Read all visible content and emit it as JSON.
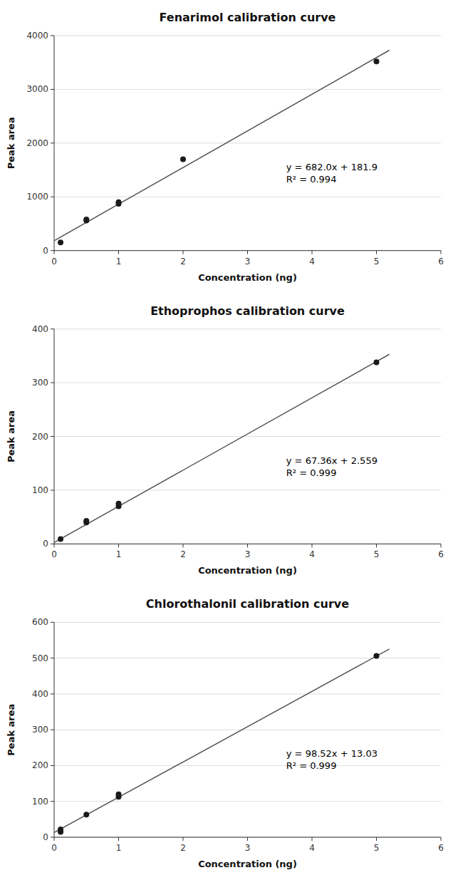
{
  "chart_data": [
    {
      "type": "scatter",
      "title": "Fenarimol calibration curve",
      "xlabel": "Concentration (ng)",
      "ylabel": "Peak area",
      "xlim": [
        0,
        6
      ],
      "xticks": [
        0,
        1,
        2,
        3,
        4,
        5,
        6
      ],
      "ylim": [
        0,
        4000
      ],
      "yticks": [
        0,
        1000,
        2000,
        3000,
        4000
      ],
      "grid": true,
      "series": [
        {
          "type": "scatter",
          "color": "#1a1a1a",
          "x": [
            0.1,
            0.5,
            0.5,
            1.0,
            1.0,
            2.0,
            5.0
          ],
          "values": [
            150,
            560,
            580,
            870,
            900,
            1700,
            3520
          ]
        },
        {
          "type": "line",
          "color": "#555555",
          "x": [
            0,
            5.2
          ],
          "values": [
            181.9,
            3728.3
          ]
        }
      ],
      "annotations": [
        "y = 682.0x + 181.9",
        "R² = 0.994"
      ]
    },
    {
      "type": "scatter",
      "title": "Ethoprophos calibration curve",
      "xlabel": "Concentration (ng)",
      "ylabel": "Peak area",
      "xlim": [
        0,
        6
      ],
      "xticks": [
        0,
        1,
        2,
        3,
        4,
        5,
        6
      ],
      "ylim": [
        0,
        400
      ],
      "yticks": [
        0,
        100,
        200,
        300,
        400
      ],
      "grid": true,
      "series": [
        {
          "type": "scatter",
          "color": "#1a1a1a",
          "x": [
            0.1,
            0.5,
            0.5,
            1.0,
            1.0,
            5.0
          ],
          "values": [
            9,
            40,
            43,
            70,
            75,
            338
          ]
        },
        {
          "type": "line",
          "color": "#555555",
          "x": [
            0,
            5.2
          ],
          "values": [
            2.559,
            352.831
          ]
        }
      ],
      "annotations": [
        "y = 67.36x + 2.559",
        "R² = 0.999"
      ]
    },
    {
      "type": "scatter",
      "title": "Chlorothalonil calibration curve",
      "xlabel": "Concentration (ng)",
      "ylabel": "Peak area",
      "xlim": [
        0,
        6
      ],
      "xticks": [
        0,
        1,
        2,
        3,
        4,
        5,
        6
      ],
      "ylim": [
        0,
        600
      ],
      "yticks": [
        0,
        100,
        200,
        300,
        400,
        500,
        600
      ],
      "grid": true,
      "series": [
        {
          "type": "scatter",
          "color": "#1a1a1a",
          "x": [
            0.1,
            0.1,
            0.5,
            1.0,
            1.0,
            5.0
          ],
          "values": [
            15,
            22,
            63,
            113,
            120,
            506
          ]
        },
        {
          "type": "line",
          "color": "#555555",
          "x": [
            0,
            5.2
          ],
          "values": [
            13.03,
            525.334
          ]
        }
      ],
      "annotations": [
        "y = 98.52x + 13.03",
        "R² = 0.999"
      ]
    }
  ]
}
